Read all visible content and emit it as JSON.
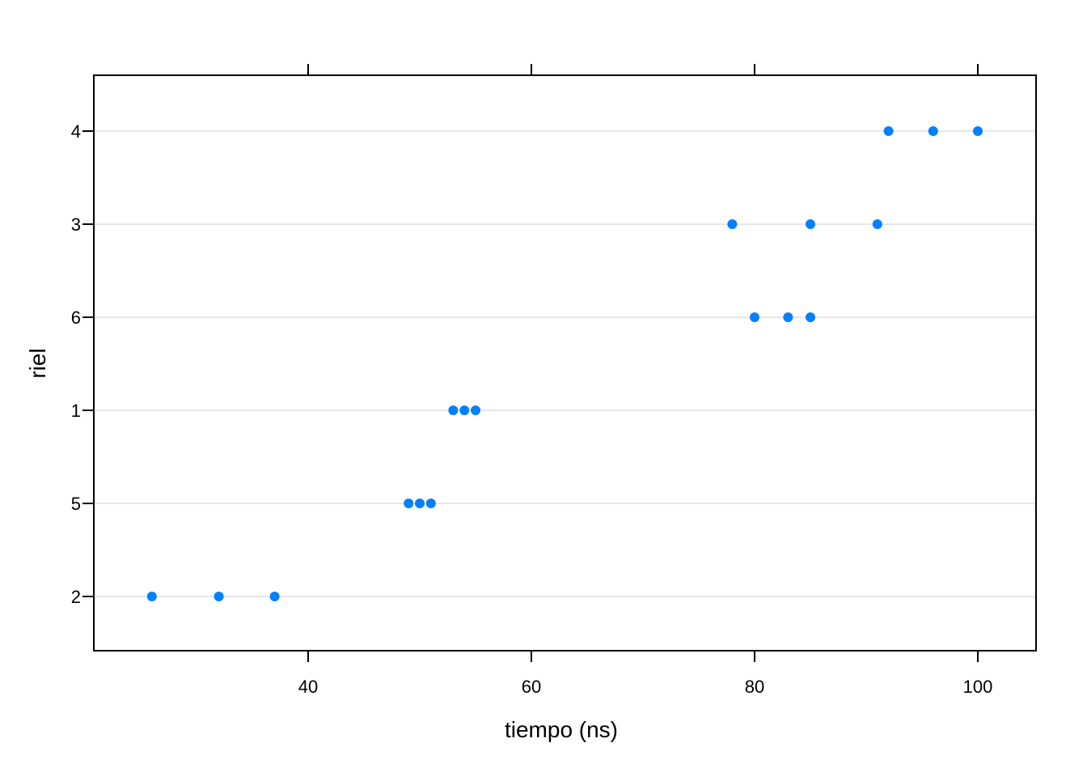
{
  "chart_data": {
    "type": "scatter",
    "title": "",
    "xlabel": "tiempo (ns)",
    "ylabel": "riel",
    "xlim": [
      21,
      105
    ],
    "x_ticks": [
      40,
      60,
      80,
      100
    ],
    "y_categories": [
      "2",
      "5",
      "1",
      "6",
      "3",
      "4"
    ],
    "grid": "horizontal",
    "series": [
      {
        "color": "#0080ff",
        "points": [
          {
            "x": 26,
            "y": "2"
          },
          {
            "x": 32,
            "y": "2"
          },
          {
            "x": 37,
            "y": "2"
          },
          {
            "x": 49,
            "y": "5"
          },
          {
            "x": 50,
            "y": "5"
          },
          {
            "x": 51,
            "y": "5"
          },
          {
            "x": 53,
            "y": "1"
          },
          {
            "x": 54,
            "y": "1"
          },
          {
            "x": 55,
            "y": "1"
          },
          {
            "x": 80,
            "y": "6"
          },
          {
            "x": 83,
            "y": "6"
          },
          {
            "x": 85,
            "y": "6"
          },
          {
            "x": 78,
            "y": "3"
          },
          {
            "x": 85,
            "y": "3"
          },
          {
            "x": 91,
            "y": "3"
          },
          {
            "x": 92,
            "y": "4"
          },
          {
            "x": 96,
            "y": "4"
          },
          {
            "x": 100,
            "y": "4"
          }
        ]
      }
    ],
    "colors": {
      "point": "#0080ff",
      "grid": "#e6e6e6",
      "frame": "#000000"
    }
  }
}
